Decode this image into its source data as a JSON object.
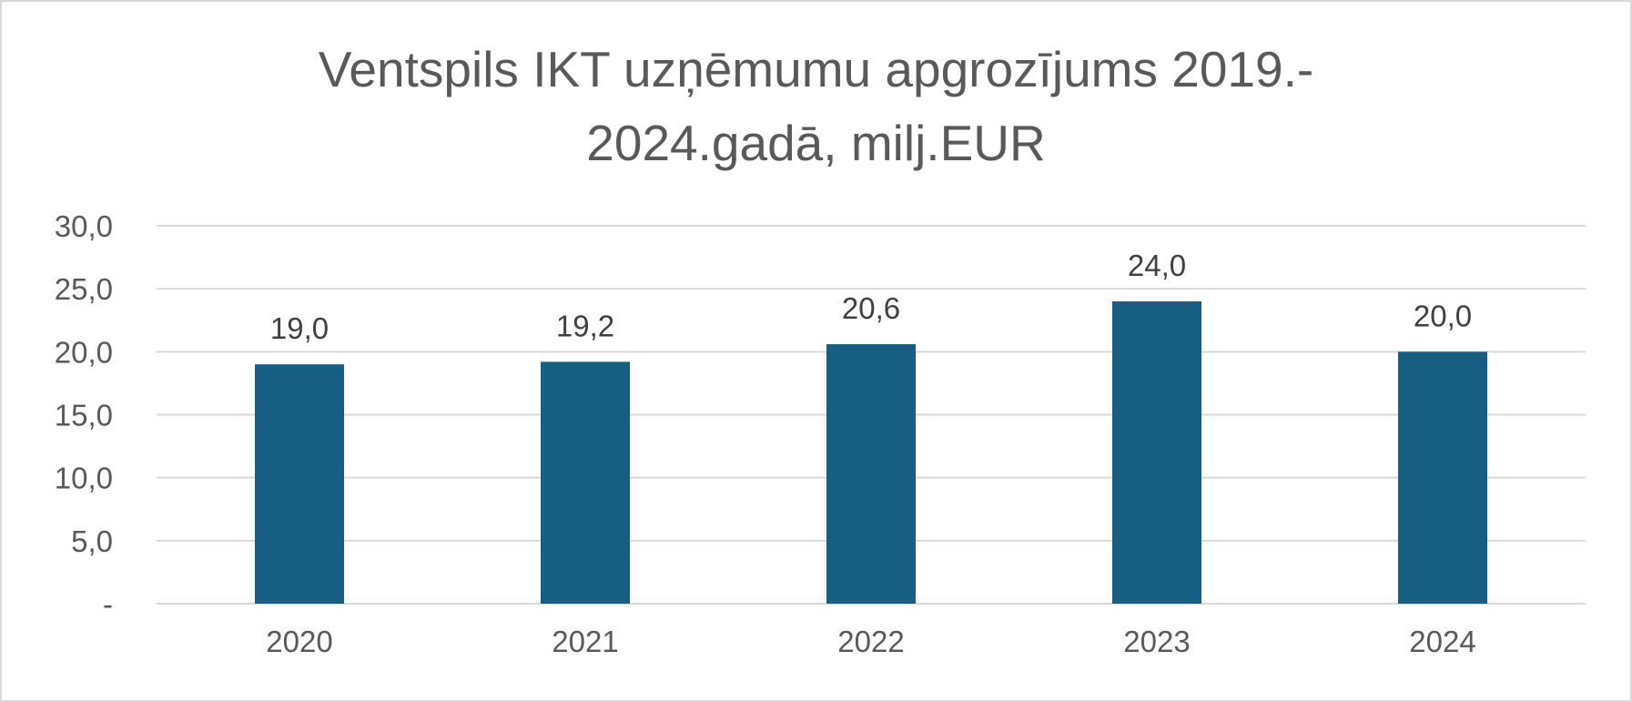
{
  "chart_data": {
    "type": "bar",
    "title_lines": [
      "Ventspils IKT uzņēmumu apgrozījums 2019.-",
      "2024.gadā, milj.EUR"
    ],
    "categories": [
      "2020",
      "2021",
      "2022",
      "2023",
      "2024"
    ],
    "values": [
      19.0,
      19.2,
      20.6,
      24.0,
      20.0
    ],
    "data_labels": [
      "19,0",
      "19,2",
      "20,6",
      "24,0",
      "20,0"
    ],
    "y_ticks": [
      {
        "value": 0,
        "label": "-"
      },
      {
        "value": 5,
        "label": "5,0"
      },
      {
        "value": 10,
        "label": "10,0"
      },
      {
        "value": 15,
        "label": "15,0"
      },
      {
        "value": 20,
        "label": "20,0"
      },
      {
        "value": 25,
        "label": "25,0"
      },
      {
        "value": 30,
        "label": "30,0"
      }
    ],
    "ylim": [
      0,
      30
    ],
    "grid": true,
    "legend": "none",
    "bar_color": "#175f82",
    "grid_color": "#d9d9d9"
  }
}
